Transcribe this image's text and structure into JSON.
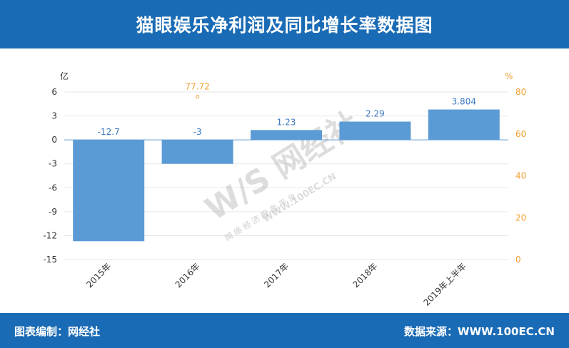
{
  "header": {
    "title": "猫眼娱乐净利润及同比增长率数据图"
  },
  "footer": {
    "left": "图表编制：网经社",
    "right": "数据来源：WWW.100EC.CN"
  },
  "watermark": {
    "mark": "W/S 网经社",
    "url": "WWW.100EC.CN",
    "sub": "网 络 经 济 服 务 平 台"
  },
  "colors": {
    "header": "#1a6bb5",
    "bar": "#5b9bd5",
    "rate": "#f0a030",
    "zero_line": "#5b9bd5"
  },
  "chart_data": {
    "type": "bar",
    "categories": [
      "2015年",
      "2016年",
      "2017年",
      "2018年",
      "2019年上半年"
    ],
    "series": [
      {
        "values": [
          -12.7,
          -3,
          1.23,
          2.29,
          3.804
        ],
        "labels": [
          "-12.7",
          "-3",
          "1.23",
          "2.29",
          "3.804"
        ],
        "axis": "left",
        "type": "bar"
      },
      {
        "values": [
          null,
          77.72,
          null,
          null,
          null
        ],
        "labels": [
          "",
          "77.72",
          "",
          "",
          ""
        ],
        "axis": "right",
        "type": "line"
      }
    ],
    "ylabel": "亿",
    "ylabel_right": "%",
    "ylim": [
      -15,
      6
    ],
    "yticks": [
      "6",
      "3",
      "0",
      "-3",
      "-6",
      "-9",
      "-12",
      "-15"
    ],
    "ylim_right": [
      0,
      80
    ],
    "yticks_right": [
      "80",
      "60",
      "40",
      "20",
      "0"
    ],
    "grid": true,
    "legend": "none"
  }
}
